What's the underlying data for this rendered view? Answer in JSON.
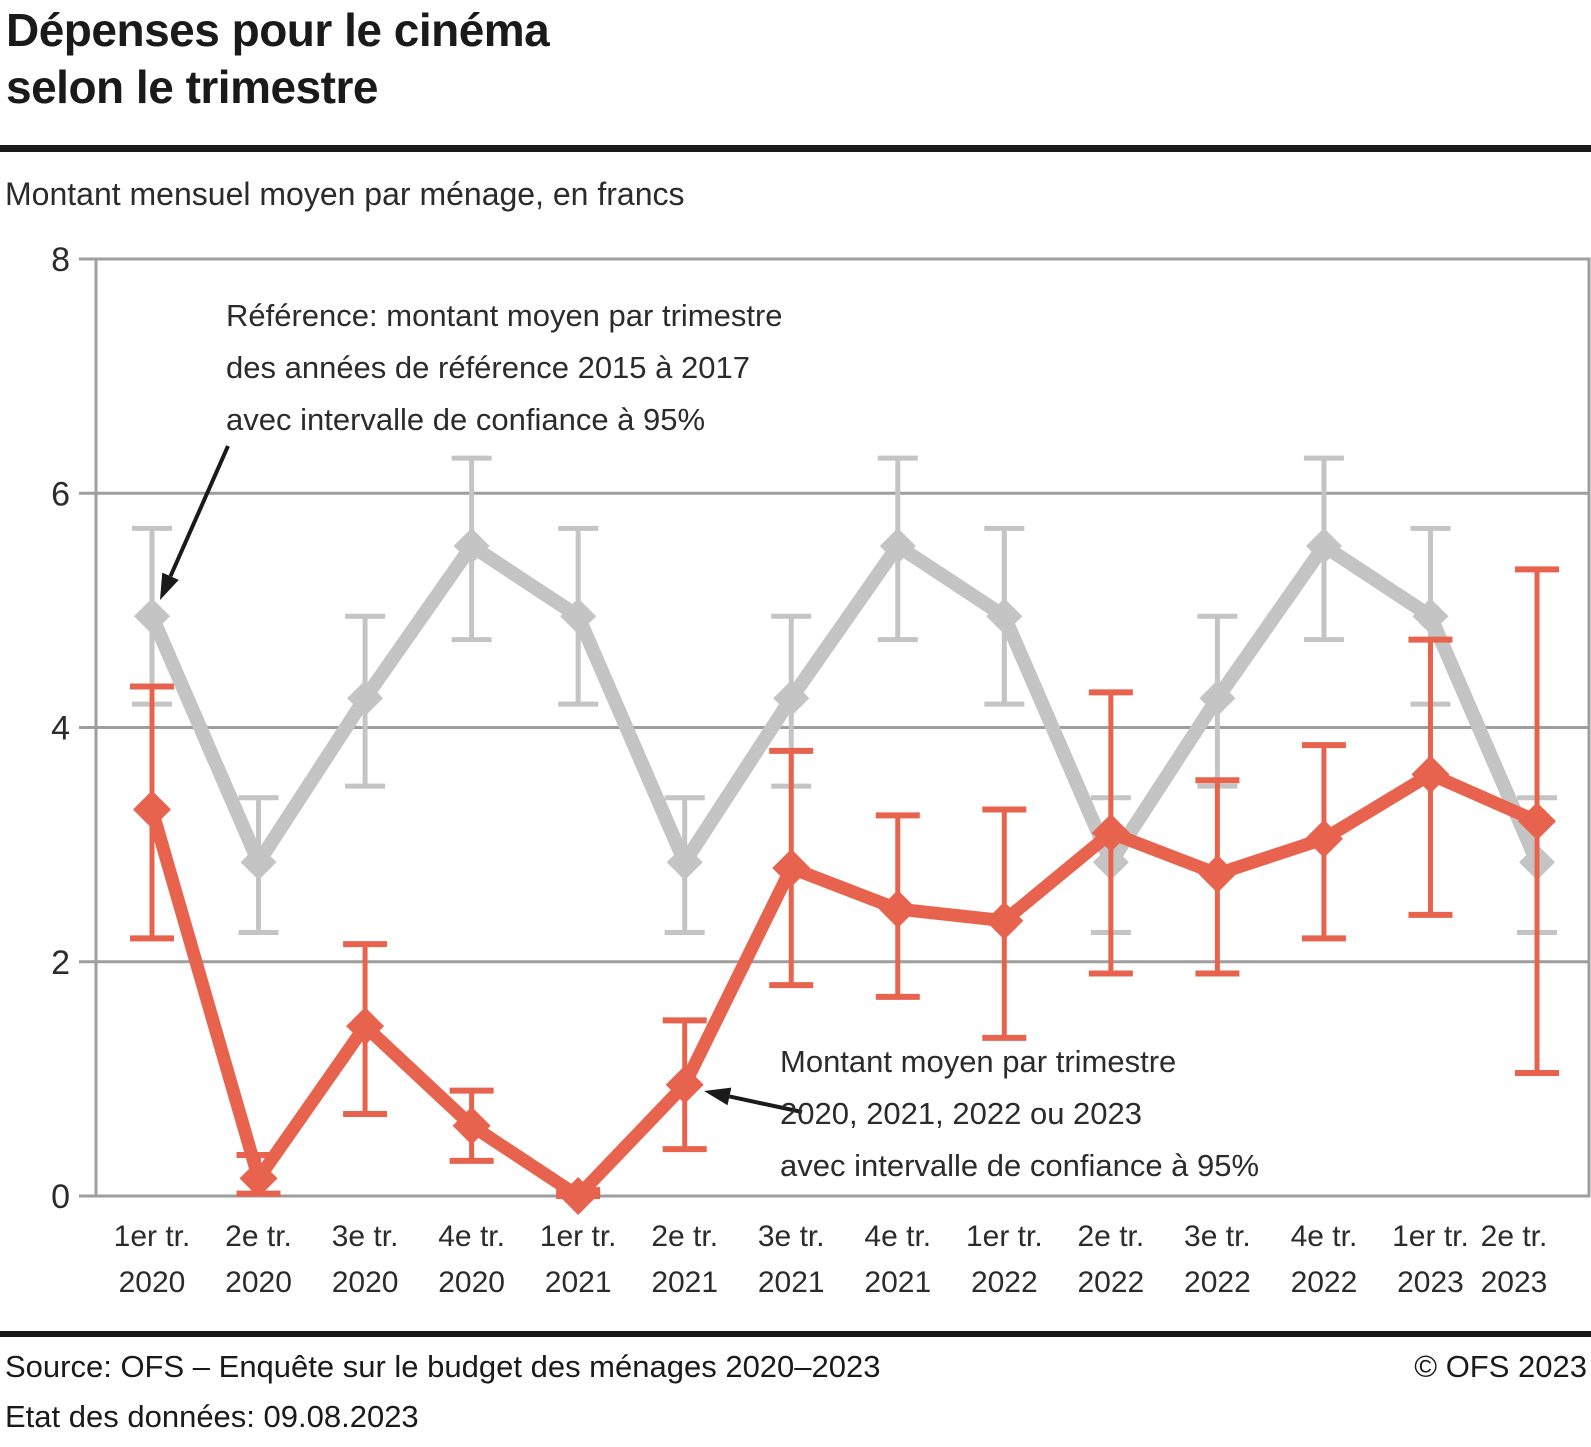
{
  "header": {
    "title_line1": "Dépenses pour le cinéma",
    "title_line2": "selon le trimestre",
    "subtitle": "Montant mensuel moyen par ménage, en francs"
  },
  "footer": {
    "source": "Source: OFS – Enquête sur le budget des ménages 2020–2023",
    "copyright": "© OFS 2023",
    "data_state": "Etat des données: 09.08.2023"
  },
  "colors": {
    "reference_series": "#c4c4c4",
    "current_series": "#e8634e",
    "grid": "#9e9e9e",
    "text": "#2b2b2b",
    "rule": "#1a1a1a"
  },
  "chart_data": {
    "type": "line",
    "title": "Dépenses pour le cinéma selon le trimestre",
    "subtitle": "Montant mensuel moyen par ménage, en francs",
    "xlabel": "",
    "ylabel": "",
    "ylim": [
      0,
      8
    ],
    "yticks": [
      0,
      2,
      4,
      6,
      8
    ],
    "grid": "horizontal",
    "legend_position": "none",
    "categories": [
      "1er tr. 2020",
      "2e tr. 2020",
      "3e tr. 2020",
      "4e tr. 2020",
      "1er tr. 2021",
      "2e tr. 2021",
      "3e tr. 2021",
      "4e tr. 2021",
      "1er tr. 2022",
      "2e tr. 2022",
      "3e tr. 2022",
      "4e tr. 2022",
      "1er tr. 2023",
      "2e tr. 2023"
    ],
    "series": [
      {
        "name": "Référence: montant moyen par trimestre des années de référence 2015 à 2017 avec intervalle de confiance à 95%",
        "color": "#c4c4c4",
        "marker": "diamond",
        "values": [
          4.95,
          2.85,
          4.25,
          5.55,
          4.95,
          2.85,
          4.25,
          5.55,
          4.95,
          2.85,
          4.25,
          5.55,
          4.95,
          2.85
        ],
        "ci_low": [
          4.2,
          2.25,
          3.5,
          4.75,
          4.2,
          2.25,
          3.5,
          4.75,
          4.2,
          2.25,
          3.5,
          4.75,
          4.2,
          2.25
        ],
        "ci_high": [
          5.7,
          3.4,
          4.95,
          6.3,
          5.7,
          3.4,
          4.95,
          6.3,
          5.7,
          3.4,
          4.95,
          6.3,
          5.7,
          3.4
        ]
      },
      {
        "name": "Montant moyen par trimestre 2020, 2021, 2022 ou 2023 avec intervalle de confiance à 95%",
        "color": "#e8634e",
        "marker": "diamond",
        "values": [
          3.3,
          0.15,
          1.45,
          0.6,
          0.0,
          0.95,
          2.8,
          2.45,
          2.35,
          3.1,
          2.75,
          3.05,
          3.6,
          3.2
        ],
        "ci_low": [
          2.2,
          0.02,
          0.7,
          0.3,
          0.0,
          0.4,
          1.8,
          1.7,
          1.35,
          1.9,
          1.9,
          2.2,
          2.4,
          1.05
        ],
        "ci_high": [
          4.35,
          0.35,
          2.15,
          0.9,
          0.05,
          1.5,
          3.8,
          3.25,
          3.3,
          4.3,
          3.55,
          3.85,
          4.75,
          5.35
        ]
      }
    ],
    "annotations": [
      {
        "lines": [
          "Référence: montant moyen par trimestre",
          "des années de référence 2015 à 2017",
          "avec intervalle de confiance à 95%"
        ],
        "points_to": "référence 1er tr. 2020"
      },
      {
        "lines": [
          "Montant moyen par trimestre",
          "2020, 2021, 2022 ou 2023",
          "avec intervalle de confiance à 95%"
        ],
        "points_to": "montant 2e tr. 2021"
      }
    ]
  }
}
